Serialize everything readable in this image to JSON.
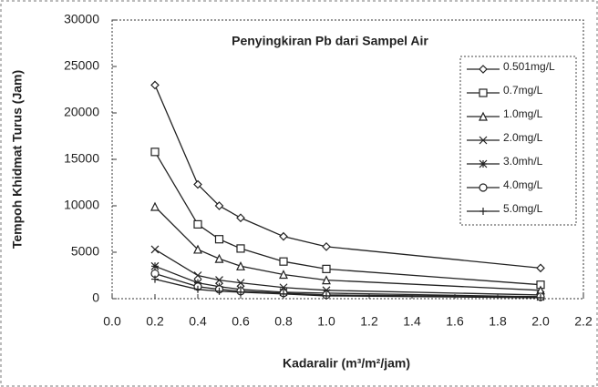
{
  "chart_data": {
    "type": "line",
    "title": "Penyingkiran Pb dari Sampel Air",
    "x_label": "Kadaralir (m³/m²/jam)",
    "y_label": "Tempoh Khidmat Turus (Jam)",
    "x": [
      0.2,
      0.4,
      0.5,
      0.6,
      0.8,
      1.0,
      2.0
    ],
    "series": [
      {
        "name": "0.501mg/L",
        "color": "#222222",
        "marker": "diamond",
        "values": [
          23000,
          12300,
          10000,
          8700,
          6700,
          5600,
          3300
        ]
      },
      {
        "name": "0.7mg/L",
        "color": "#222222",
        "marker": "square",
        "values": [
          15800,
          8000,
          6400,
          5400,
          4000,
          3200,
          1500
        ]
      },
      {
        "name": "1.0mg/L",
        "color": "#222222",
        "marker": "triangle",
        "values": [
          9900,
          5300,
          4300,
          3500,
          2600,
          2000,
          900
        ]
      },
      {
        "name": "2.0mg/L",
        "color": "#222222",
        "marker": "x",
        "values": [
          5300,
          2500,
          2000,
          1700,
          1200,
          900,
          400
        ]
      },
      {
        "name": "3.0mh/L",
        "color": "#222222",
        "marker": "asterisk",
        "values": [
          3500,
          1700,
          1300,
          1000,
          700,
          600,
          200
        ]
      },
      {
        "name": "4.0mg/L",
        "color": "#222222",
        "marker": "circle",
        "values": [
          2700,
          1300,
          1000,
          800,
          600,
          400,
          200
        ]
      },
      {
        "name": "5.0mg/L",
        "color": "#222222",
        "marker": "plus",
        "values": [
          2100,
          1000,
          800,
          700,
          500,
          300,
          100
        ]
      }
    ],
    "xlim": [
      0,
      2.2
    ],
    "xticks": [
      {
        "value": 0,
        "label": "0.0"
      },
      0.2,
      0.4,
      0.6,
      0.8,
      {
        "value": 1,
        "label": "1.0"
      },
      1.2,
      1.4,
      1.6,
      1.8,
      {
        "value": 2,
        "label": "2.0"
      },
      2.2
    ],
    "ylim": [
      0,
      30000
    ],
    "yticks": [
      0,
      5000,
      10000,
      15000,
      20000,
      25000,
      30000
    ],
    "grid": false,
    "legend": "upper right"
  }
}
